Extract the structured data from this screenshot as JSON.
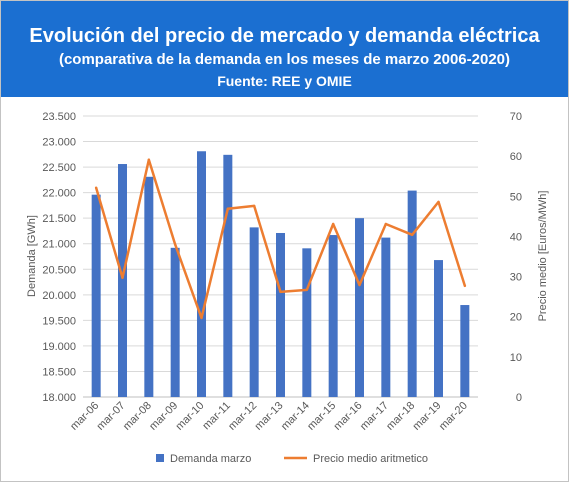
{
  "colors": {
    "header_bg": "#1b6fd1",
    "demand": "#4472c4",
    "price": "#ed7d31"
  },
  "chart_data": {
    "type": "bar",
    "title": "Evolución del precio de mercado y demanda eléctrica",
    "subtitle": "(comparativa de la demanda en los meses de marzo 2006-2020)",
    "source": "Fuente: REE y OMIE",
    "categories": [
      "mar-06",
      "mar-07",
      "mar-08",
      "mar-09",
      "mar-10",
      "mar-11",
      "mar-12",
      "mar-13",
      "mar-14",
      "mar-15",
      "mar-16",
      "mar-17",
      "mar-18",
      "mar-19",
      "mar-20"
    ],
    "series": [
      {
        "name": "Demanda marzo",
        "type": "bar",
        "axis": "left",
        "values": [
          21960,
          22560,
          22310,
          20920,
          22810,
          22740,
          21320,
          21210,
          20910,
          21170,
          21500,
          21120,
          22040,
          20680,
          19800
        ]
      },
      {
        "name": "Precio medio aritmetico",
        "type": "line",
        "axis": "right",
        "values": [
          52.1,
          29.7,
          59.1,
          38.0,
          19.7,
          46.9,
          47.6,
          26.2,
          26.7,
          43.1,
          27.9,
          43.1,
          40.4,
          48.6,
          27.7
        ]
      }
    ],
    "ylabel": "Demanda [GWh]",
    "y2label": "Precio medio [Euros/MWh]",
    "ylim": [
      18000,
      23500
    ],
    "y2lim": [
      0,
      70
    ],
    "y_ticks": [
      "18.000",
      "18.500",
      "19.000",
      "19.500",
      "20.000",
      "20.500",
      "21.000",
      "21.500",
      "22.000",
      "22.500",
      "23.000",
      "23.500"
    ],
    "y2_ticks": [
      "0",
      "10",
      "20",
      "30",
      "40",
      "50",
      "60",
      "70"
    ],
    "grid": true,
    "legend": "bottom"
  }
}
